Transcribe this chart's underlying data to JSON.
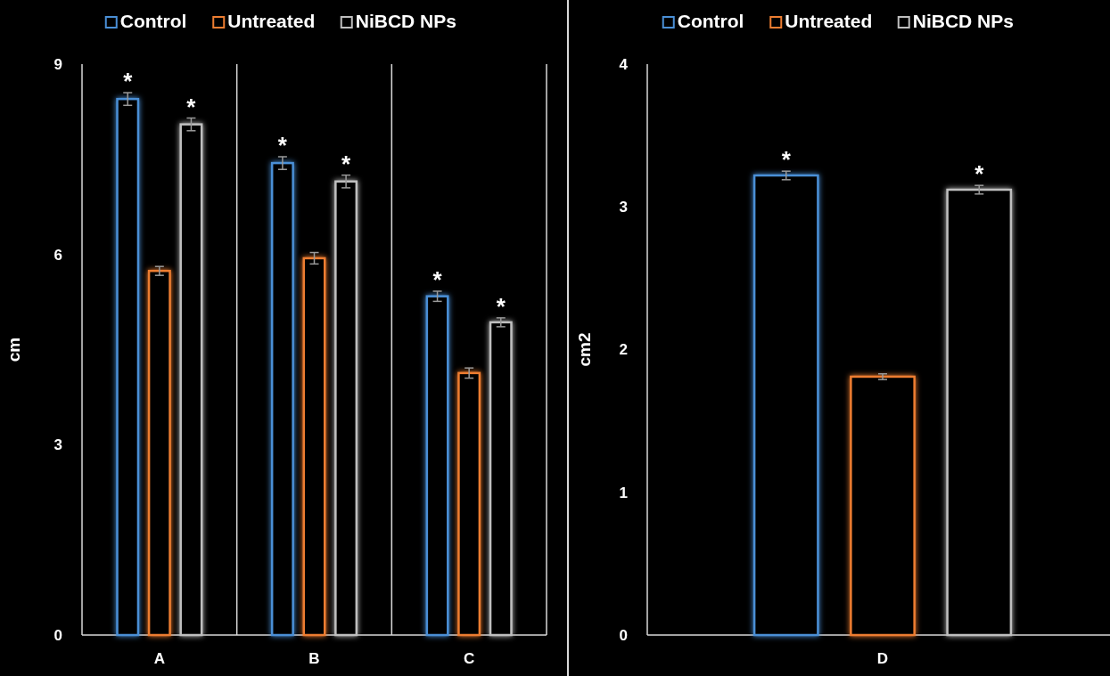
{
  "chart_data": [
    {
      "type": "bar",
      "ylabel": "cm",
      "categories": [
        "A",
        "B",
        "C"
      ],
      "ylim": [
        0,
        9
      ],
      "yticks": [
        0,
        3,
        6,
        9
      ],
      "grid": "x",
      "legend": "top",
      "series": [
        {
          "name": "Control",
          "color": "#4a8fd6",
          "values": [
            8.45,
            7.44,
            5.34
          ],
          "errors": [
            0.1,
            0.1,
            0.08
          ],
          "value_labels": [
            "*",
            "*",
            "*"
          ]
        },
        {
          "name": "Untreated",
          "color": "#ed7d31",
          "values": [
            5.74,
            5.94,
            4.13
          ],
          "errors": [
            0.07,
            0.09,
            0.08
          ],
          "value_labels": [
            null,
            null,
            null
          ]
        },
        {
          "name": "NiBCD NPs",
          "color": "#bfbfbf",
          "values": [
            8.05,
            7.15,
            4.93
          ],
          "errors": [
            0.1,
            0.1,
            0.07
          ],
          "value_labels": [
            "*",
            "*",
            "*"
          ]
        }
      ]
    },
    {
      "type": "bar",
      "ylabel": "cm2",
      "categories": [
        "D"
      ],
      "ylim": [
        0,
        4
      ],
      "yticks": [
        0,
        1,
        2,
        3,
        4
      ],
      "legend": "top",
      "series": [
        {
          "name": "Control",
          "color": "#4a8fd6",
          "values": [
            3.22
          ],
          "errors": [
            0.03
          ],
          "value_labels": [
            "*"
          ]
        },
        {
          "name": "Untreated",
          "color": "#ed7d31",
          "values": [
            1.81
          ],
          "errors": [
            0.02
          ],
          "value_labels": [
            null
          ]
        },
        {
          "name": "NiBCD NPs",
          "color": "#bfbfbf",
          "values": [
            3.12
          ],
          "errors": [
            0.03
          ],
          "value_labels": [
            "*"
          ]
        }
      ]
    }
  ]
}
